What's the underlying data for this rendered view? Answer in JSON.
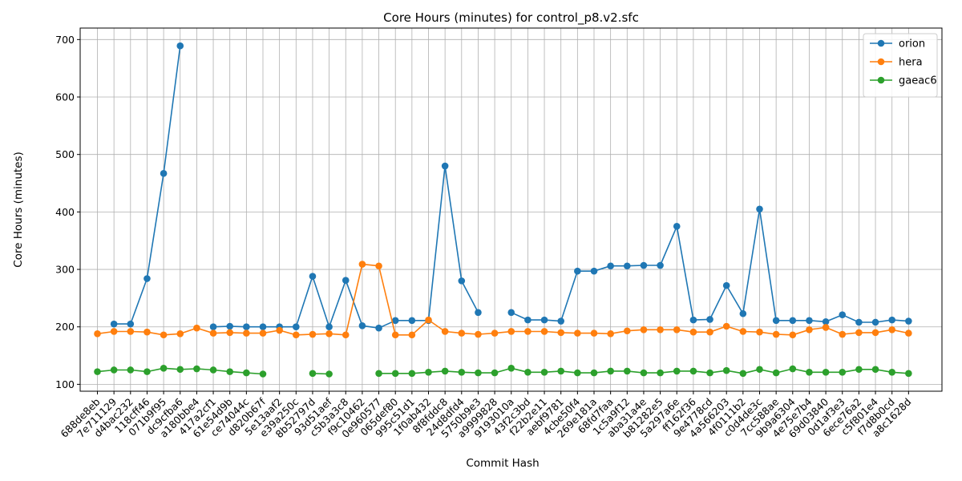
{
  "chart_data": {
    "type": "line",
    "title": "Core Hours (minutes) for control_p8.v2.sfc",
    "xlabel": "Commit Hash",
    "ylabel": "Core Hours (minutes)",
    "ylim": [
      88,
      720
    ],
    "yticks": [
      100,
      200,
      300,
      400,
      500,
      600,
      700
    ],
    "grid": true,
    "legend_position": "top-right",
    "categories": [
      "688de8eb",
      "7e711129",
      "d4bac232",
      "118cff46",
      "071b9f95",
      "dc9cfba6",
      "a180bbe4",
      "417a2cf1",
      "61e54d9b",
      "ce74044c",
      "d820b67f",
      "5e13aaf2",
      "e39a250c",
      "8b52797d",
      "93d51aef",
      "c5b3a3c8",
      "f9c10462",
      "0e960577",
      "065def80",
      "995c51d1",
      "1f0ab432",
      "8f8fddc8",
      "24d8dfd4",
      "5750b9e3",
      "a9999828",
      "9193010a",
      "43f2c3bd",
      "f22b2e11",
      "aebf9781",
      "4cbe50f4",
      "269e181a",
      "68fd7faa",
      "1c5a9f12",
      "aba31a4e",
      "b81282e5",
      "5a297a6e",
      "ff162f36",
      "9e4778cd",
      "4a566203",
      "4f0111b2",
      "c0d4de3c",
      "7cc588ae",
      "9b9a6304",
      "4e75e7b4",
      "69d03840",
      "0d1af3e3",
      "6ece76a2",
      "c5f801e4",
      "f7d8b0cd",
      "a8c1628d"
    ],
    "series": [
      {
        "name": "orion",
        "color": "#1f77b4",
        "values": [
          null,
          205,
          205,
          284,
          467,
          689,
          null,
          200,
          201,
          200,
          200,
          200,
          200,
          288,
          200,
          281,
          202,
          198,
          211,
          211,
          211,
          480,
          280,
          225,
          null,
          225,
          212,
          212,
          210,
          297,
          297,
          306,
          306,
          307,
          307,
          375,
          212,
          213,
          272,
          223,
          405,
          211,
          211,
          211,
          209,
          221,
          208,
          208,
          212,
          210
        ]
      },
      {
        "name": "hera",
        "color": "#ff7f0e",
        "values": [
          188,
          192,
          192,
          191,
          186,
          188,
          198,
          189,
          190,
          189,
          189,
          194,
          186,
          187,
          188,
          186,
          309,
          306,
          186,
          186,
          212,
          192,
          189,
          187,
          189,
          192,
          192,
          192,
          190,
          189,
          189,
          188,
          193,
          195,
          195,
          195,
          191,
          191,
          201,
          192,
          191,
          187,
          186,
          195,
          199,
          187,
          190,
          190,
          195,
          189
        ]
      },
      {
        "name": "gaeac6",
        "color": "#2ca02c",
        "values": [
          122,
          125,
          125,
          122,
          128,
          126,
          127,
          125,
          122,
          120,
          118,
          null,
          null,
          119,
          118,
          null,
          null,
          119,
          119,
          119,
          121,
          123,
          121,
          120,
          120,
          128,
          121,
          121,
          123,
          120,
          120,
          123,
          123,
          120,
          120,
          123,
          123,
          120,
          124,
          119,
          126,
          120,
          127,
          121,
          121,
          121,
          126,
          126,
          121,
          119
        ]
      }
    ]
  }
}
